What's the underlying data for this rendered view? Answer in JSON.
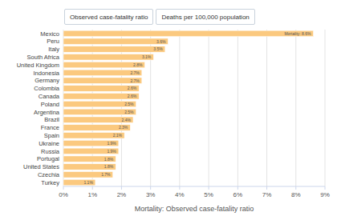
{
  "toggle_buttons": [
    "Observed case-fatality ratio",
    "Deaths per 100,000 population"
  ],
  "chart_data": {
    "type": "bar",
    "orientation": "horizontal",
    "x_label": "Mortality: Observed case-fatality ratio",
    "categories": [
      "Mexico",
      "Peru",
      "Italy",
      "South Africa",
      "United Kingdom",
      "Indonesia",
      "Germany",
      "Colombia",
      "Canada",
      "Poland",
      "Argentina",
      "Brazil",
      "France",
      "Spain",
      "Ukraine",
      "Russia",
      "Portugal",
      "United States",
      "Czechia",
      "Turkey"
    ],
    "values": [
      8.6,
      3.6,
      3.5,
      3.1,
      2.8,
      2.7,
      2.7,
      2.6,
      2.6,
      2.5,
      2.5,
      2.4,
      2.3,
      2.1,
      1.9,
      1.9,
      1.8,
      1.8,
      1.7,
      1.1
    ],
    "value_labels": [
      "Mortality: 8.6%",
      "3.6%",
      "3.5%",
      "3.1%",
      "2.8%",
      "2.7%",
      "2.7%",
      "2.6%",
      "2.6%",
      "2.5%",
      "2.5%",
      "2.4%",
      "2.3%",
      "2.1%",
      "1.9%",
      "1.9%",
      "1.8%",
      "1.8%",
      "1.7%",
      "1.1%"
    ],
    "color": "#fbc97f",
    "xlim": [
      0,
      9
    ],
    "xticks": [
      {
        "value": 0,
        "label": "0%"
      },
      {
        "value": 1,
        "label": "1%"
      },
      {
        "value": 2,
        "label": "2%"
      },
      {
        "value": 3,
        "label": "3%"
      },
      {
        "value": 4,
        "label": "4%"
      },
      {
        "value": 5,
        "label": "5%"
      },
      {
        "value": 6,
        "label": "6%"
      },
      {
        "value": 7,
        "label": "7%"
      },
      {
        "value": 8,
        "label": "8%"
      },
      {
        "value": 9,
        "label": "9%"
      }
    ],
    "grid": true,
    "data_labels": true
  }
}
